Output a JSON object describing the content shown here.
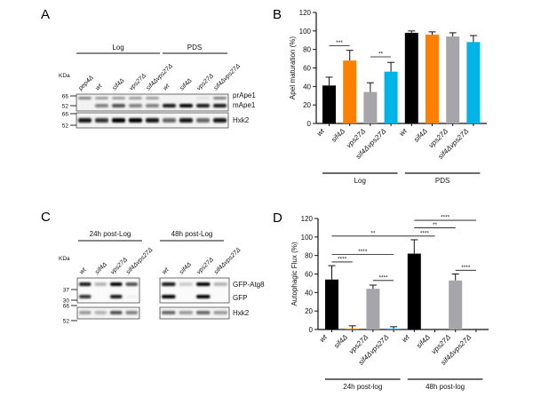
{
  "panels": {
    "a": "A",
    "b": "B",
    "c": "C",
    "d": "D"
  },
  "blot_a": {
    "kda_label": "KDa",
    "groups": [
      "Log",
      "PDS"
    ],
    "lanes": [
      "pep4Δ",
      "wt",
      "sif4Δ",
      "vps27Δ",
      "sif4Δvps27Δ",
      "wt",
      "sif4Δ",
      "vps27Δ",
      "sif4Δvps27Δ"
    ],
    "markers": [
      "66",
      "52",
      "66",
      "52"
    ],
    "band_labels": [
      "prApe1",
      "mApe1",
      "Hxk2"
    ],
    "band_intensity": {
      "prApe1": [
        0.5,
        0.4,
        0.4,
        0.4,
        0.4,
        0.0,
        0.05,
        0.12,
        0.5
      ],
      "mApe1": [
        0.0,
        0.5,
        0.7,
        0.5,
        0.5,
        0.9,
        1.0,
        0.9,
        0.9
      ],
      "Hxk2": [
        0.9,
        0.8,
        1.0,
        1.0,
        0.9,
        0.6,
        0.9,
        0.6,
        0.9
      ]
    }
  },
  "blot_c": {
    "kda_label": "KDa",
    "groups": [
      "24h post-Log",
      "48h post-Log"
    ],
    "lanes": [
      "wt",
      "sif4Δ",
      "vps27Δ",
      "sif4Δvps27Δ"
    ],
    "markers": [
      "37",
      "30",
      "66",
      "52"
    ],
    "band_labels": [
      "GFP-Atg8",
      "GFP",
      "Hxk2"
    ],
    "band_intensity": {
      "24h": {
        "GFP-Atg8": [
          0.9,
          0.3,
          1.0,
          0.7
        ],
        "GFP": [
          0.8,
          0.0,
          0.9,
          0.05
        ],
        "Hxk2": [
          0.4,
          0.3,
          0.7,
          0.5
        ]
      },
      "48h": {
        "GFP-Atg8": [
          0.9,
          0.2,
          1.0,
          0.3
        ],
        "GFP": [
          1.0,
          0.0,
          1.0,
          0.0
        ],
        "Hxk2": [
          0.6,
          0.4,
          0.6,
          0.4
        ]
      }
    }
  },
  "chart_data": [
    {
      "type": "bar",
      "panel": "B",
      "ylabel": "ApeI maturation (%)",
      "ylim": [
        0,
        120
      ],
      "yticks": [
        0,
        20,
        40,
        60,
        80,
        100,
        120
      ],
      "categories": [
        "wt",
        "sif4Δ",
        "vps27Δ",
        "sif4Δvps27Δ",
        "wt",
        "sif4Δ",
        "vps27Δ",
        "sif4Δvps27Δ"
      ],
      "groups": [
        {
          "label": "Log",
          "range": [
            0,
            3
          ]
        },
        {
          "label": "PDS",
          "range": [
            4,
            7
          ]
        }
      ],
      "values": [
        41,
        68,
        34,
        56,
        98,
        96,
        94,
        88
      ],
      "errors": [
        9,
        11,
        10,
        10,
        2,
        3,
        4,
        7
      ],
      "colors": [
        "#000000",
        "#ff7f00",
        "#a5a5aa",
        "#00b4e8",
        "#000000",
        "#ff7f00",
        "#a5a5aa",
        "#00b4e8"
      ],
      "significance": [
        {
          "from": 0,
          "to": 1,
          "y": 84,
          "label": "***"
        },
        {
          "from": 2,
          "to": 3,
          "y": 72,
          "label": "**"
        }
      ]
    },
    {
      "type": "bar",
      "panel": "D",
      "ylabel": "Autophagic Flux (%)",
      "ylim": [
        0,
        120
      ],
      "yticks": [
        0,
        20,
        40,
        60,
        80,
        100,
        120
      ],
      "categories": [
        "wt",
        "sif4Δ",
        "vps27Δ",
        "sif4Δvps27Δ",
        "wt",
        "sif4Δ",
        "vps27Δ",
        "sif4Δvps27Δ"
      ],
      "groups": [
        {
          "label": "24h post-log",
          "range": [
            0,
            3
          ]
        },
        {
          "label": "48h post-log",
          "range": [
            4,
            7
          ]
        }
      ],
      "values": [
        54,
        1,
        44,
        1,
        82,
        0,
        53,
        0
      ],
      "errors": [
        15,
        3,
        4,
        2,
        15,
        0,
        7,
        0
      ],
      "colors": [
        "#000000",
        "#ff7f00",
        "#a5a5aa",
        "#00b4e8",
        "#000000",
        "#ff7f00",
        "#a5a5aa",
        "#00b4e8"
      ],
      "significance": [
        {
          "from": 0,
          "to": 4,
          "y": 101,
          "label": "**"
        },
        {
          "from": 0,
          "to": 1,
          "y": 73,
          "label": "****"
        },
        {
          "from": 0,
          "to": 3,
          "y": 81,
          "label": "****"
        },
        {
          "from": 2,
          "to": 3,
          "y": 53,
          "label": "****"
        },
        {
          "from": 4,
          "to": 5,
          "y": 101,
          "label": "****"
        },
        {
          "from": 4,
          "to": 6,
          "y": 110,
          "label": "**"
        },
        {
          "from": 4,
          "to": 7,
          "y": 118,
          "label": "****"
        },
        {
          "from": 6,
          "to": 7,
          "y": 64,
          "label": "****"
        }
      ]
    }
  ]
}
